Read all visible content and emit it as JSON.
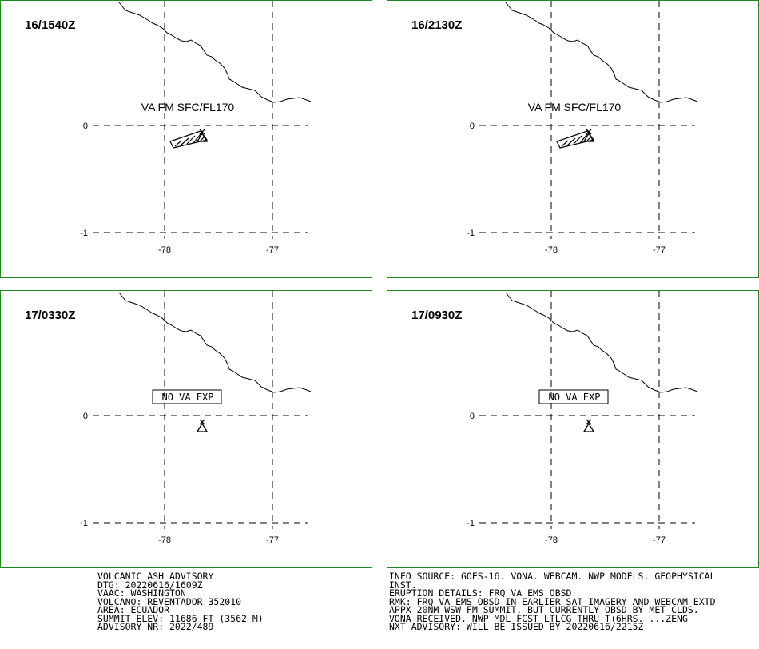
{
  "panels": [
    {
      "time": "16/1540Z",
      "label": "VA FM SFC/FL170",
      "label_style": "plain",
      "ash_polygon": true
    },
    {
      "time": "16/2130Z",
      "label": "VA FM SFC/FL170",
      "label_style": "plain",
      "ash_polygon": true
    },
    {
      "time": "17/0330Z",
      "label": "NO VA EXP",
      "label_style": "boxed",
      "ash_polygon": false
    },
    {
      "time": "17/0930Z",
      "label": "NO VA EXP",
      "label_style": "boxed",
      "ash_polygon": false
    }
  ],
  "lat_ticks": [
    "0",
    "-1"
  ],
  "lon_ticks": [
    "-78",
    "-77"
  ],
  "colors": {
    "panel_border": "#1e8a1e",
    "lines": "#000000"
  },
  "advisory_left": [
    "VOLCANIC ASH ADVISORY",
    "DTG: 20220616/1609Z",
    "VAAC: WASHINGTON",
    "VOLCANO: REVENTADOR 352010",
    "AREA: ECUADOR",
    "SUMMIT ELEV: 11686 FT (3562 M)",
    "ADVISORY NR: 2022/489"
  ],
  "advisory_right": [
    "INFO SOURCE: GOES-16. VONA. WEBCAM. NWP MODELS. GEOPHYSICAL",
    "INST.",
    "ERUPTION DETAILS: FRQ VA EMS OBSD",
    "RMK: FRQ VA EMS OBSD IN EARLIER SAT IMAGERY AND WEBCAM EXTD",
    "APPX 20NM WSW FM SUMMIT, BUT CURRENTLY OBSD BY MET CLDS.",
    "VONA RECEIVED. NWP MDL FCST LTLCG THRU T+6HRS. ...ZENG",
    "NXT ADVISORY: WILL BE ISSUED BY 20220616/2215Z"
  ]
}
